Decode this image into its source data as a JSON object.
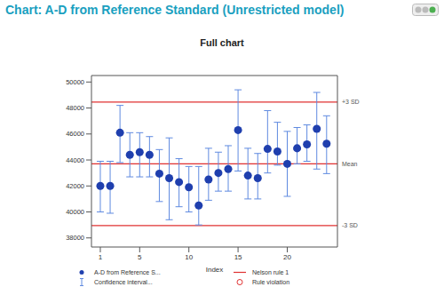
{
  "chart_data": {
    "type": "scatter",
    "header": "Chart: A-D from Reference Standard (Unrestricted model)",
    "title": "Full chart",
    "x_label": "Index",
    "x": [
      1,
      2,
      3,
      4,
      5,
      6,
      7,
      8,
      9,
      10,
      11,
      12,
      13,
      14,
      15,
      16,
      17,
      18,
      19,
      20,
      21,
      22,
      23,
      24
    ],
    "series": [
      {
        "name": "A-D from Reference S...",
        "color": "#1f3fae",
        "marker": "circle",
        "values": [
          42000,
          42000,
          46100,
          44400,
          44600,
          44400,
          42950,
          42600,
          42300,
          41900,
          40500,
          42500,
          43000,
          43300,
          46300,
          42800,
          42600,
          44850,
          44650,
          43700,
          44900,
          45200,
          46400,
          45250
        ],
        "ci_name": "Confidence interval...",
        "ci_color": "#5f8ae0",
        "ci_lower": [
          40000,
          39900,
          43800,
          42700,
          42700,
          42700,
          40800,
          39400,
          40400,
          40000,
          39000,
          40900,
          41600,
          41600,
          43150,
          41000,
          41000,
          43000,
          43600,
          41200,
          43700,
          43900,
          43300,
          42950
        ],
        "ci_upper": [
          43900,
          43900,
          48200,
          46100,
          46100,
          45800,
          44800,
          45700,
          44100,
          43500,
          43500,
          44900,
          44600,
          45100,
          49400,
          44900,
          44500,
          47800,
          46900,
          46200,
          46500,
          46700,
          49200,
          47400
        ]
      }
    ],
    "reference_lines": [
      {
        "value": 48450,
        "label": "+3 SD"
      },
      {
        "value": 43700,
        "label": "Mean"
      },
      {
        "value": 38950,
        "label": "-3 SD"
      }
    ],
    "reference_name": "Nelson rule 1",
    "reference_color": "#e03030",
    "violation_name": "Rule violation",
    "xlim": [
      0.1,
      25.1
    ],
    "xticks": [
      1,
      5,
      10,
      15,
      20
    ],
    "ylim": [
      37300,
      50500
    ],
    "yticks": [
      38000,
      40000,
      42000,
      44000,
      46000,
      48000,
      50000
    ],
    "grid": false
  }
}
